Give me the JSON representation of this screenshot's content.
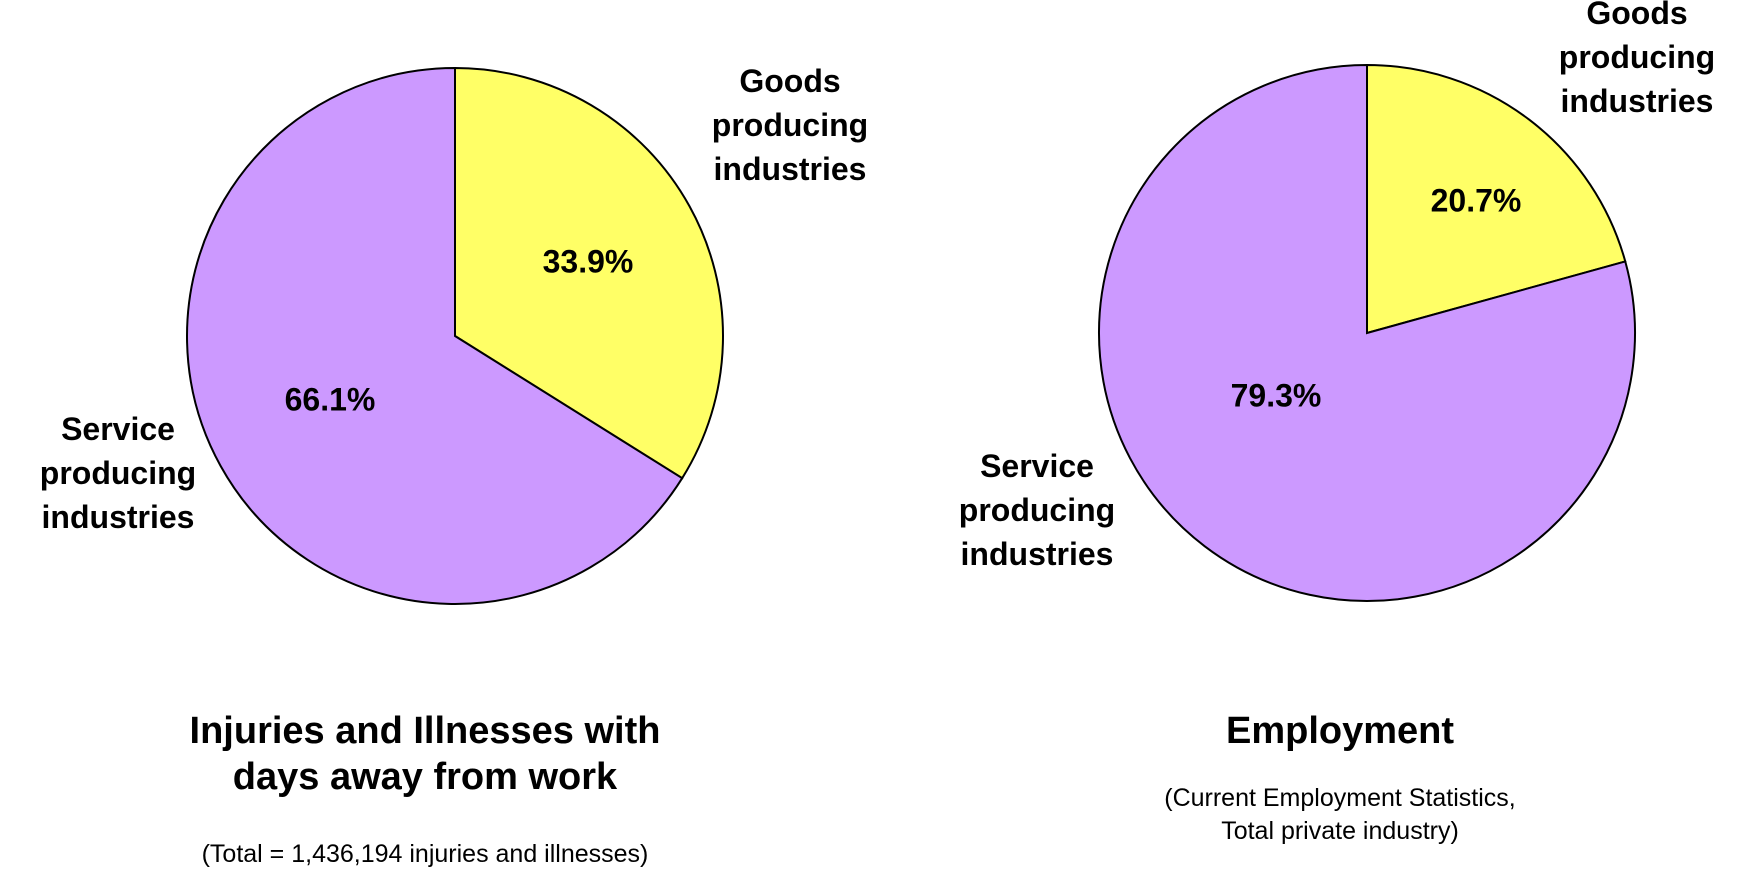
{
  "chart_data": [
    {
      "type": "pie",
      "title_lines": [
        "Injuries and Illnesses with",
        "days away from work"
      ],
      "subtitle_lines": [
        "(Total = 1,436,194 injuries and illnesses)"
      ],
      "slices": [
        {
          "label_lines": [
            "Goods",
            "producing",
            "industries"
          ],
          "value": 33.9,
          "value_label": "33.9%",
          "color": "#FFFF66"
        },
        {
          "label_lines": [
            "Service",
            "producing",
            "industries"
          ],
          "value": 66.1,
          "value_label": "66.1%",
          "color": "#CC99FF"
        }
      ]
    },
    {
      "type": "pie",
      "title_lines": [
        "Employment"
      ],
      "subtitle_lines": [
        "(Current Employment Statistics,",
        "Total private industry)"
      ],
      "slices": [
        {
          "label_lines": [
            "Goods",
            "producing",
            "industries"
          ],
          "value": 20.7,
          "value_label": "20.7%",
          "color": "#FFFF66"
        },
        {
          "label_lines": [
            "Service",
            "producing",
            "industries"
          ],
          "value": 79.3,
          "value_label": "79.3%",
          "color": "#CC99FF"
        }
      ]
    }
  ]
}
